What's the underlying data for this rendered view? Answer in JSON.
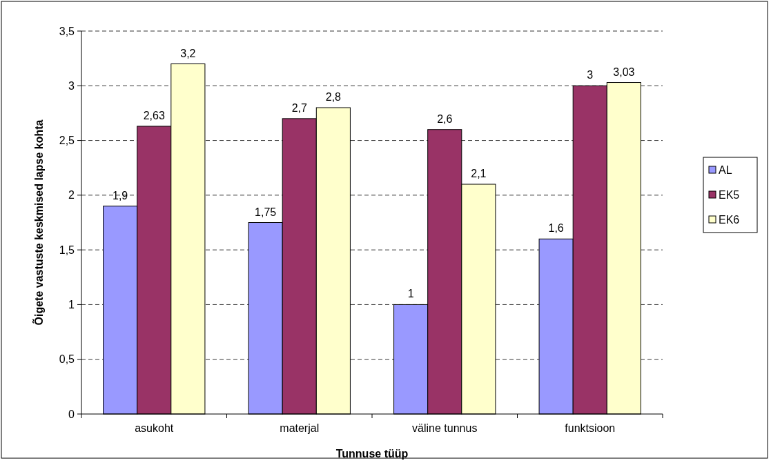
{
  "chart_data": {
    "type": "bar",
    "xlabel": "Tunnuse tüüp",
    "ylabel": "Õigete vastuste keskmised lapse kohta",
    "categories": [
      "asukoht",
      "materjal",
      "väline tunnus",
      "funktsioon"
    ],
    "series": [
      {
        "name": "AL",
        "color": "#9999ff",
        "values": [
          1.9,
          1.75,
          1,
          1.6
        ],
        "value_labels": [
          "1,9",
          "1,75",
          "1",
          "1,6"
        ]
      },
      {
        "name": "EK5",
        "color": "#993366",
        "values": [
          2.63,
          2.7,
          2.6,
          3
        ],
        "value_labels": [
          "2,63",
          "2,7",
          "2,6",
          "3"
        ]
      },
      {
        "name": "EK6",
        "color": "#ffffcc",
        "values": [
          3.2,
          2.8,
          2.1,
          3.03
        ],
        "value_labels": [
          "3,2",
          "2,8",
          "2,1",
          "3,03"
        ]
      }
    ],
    "ylim": [
      0,
      3.5
    ],
    "yticks": [
      0,
      {
        "value": 0.5,
        "label": "0,5"
      },
      1,
      {
        "value": 1.5,
        "label": "1,5"
      },
      2,
      {
        "value": 2.5,
        "label": "2,5"
      },
      3,
      {
        "value": 3.5,
        "label": "3,5"
      }
    ],
    "grid": "y",
    "legend": "right"
  }
}
